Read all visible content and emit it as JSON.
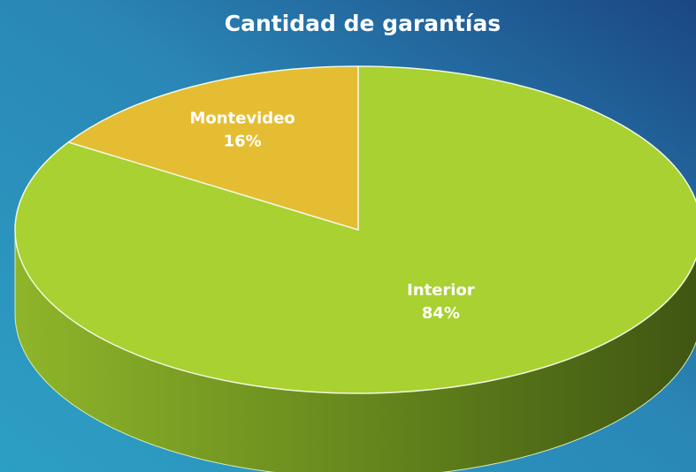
{
  "chart_data": {
    "type": "pie",
    "title": "Cantidad de garantías",
    "categories": [
      "Interior",
      "Montevideo"
    ],
    "values": [
      84,
      16
    ],
    "value_labels": [
      "84%",
      "16%"
    ],
    "colors": [
      "#a8d131",
      "#e5bd32"
    ]
  }
}
